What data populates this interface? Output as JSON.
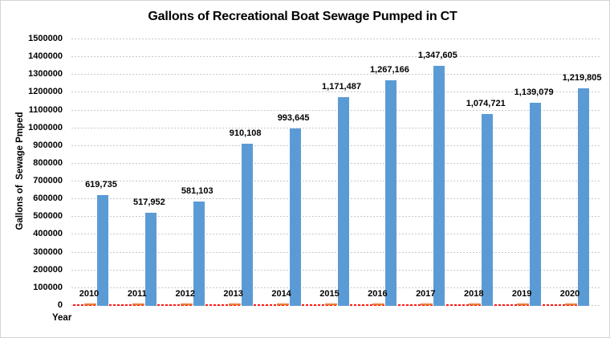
{
  "chart_data": {
    "type": "bar",
    "title": "Gallons of Recreational Boat Sewage Pumped in CT",
    "xlabel": "Year",
    "ylabel": "Gallons of  Sewage Pmped",
    "categories": [
      "2010",
      "2011",
      "2012",
      "2013",
      "2014",
      "2015",
      "2016",
      "2017",
      "2018",
      "2019",
      "2020"
    ],
    "values": [
      619735,
      517952,
      581103,
      910108,
      993645,
      1171487,
      1267166,
      1347605,
      1074721,
      1139079,
      1219805
    ],
    "data_labels": [
      "619,735",
      "517,952",
      "581,103",
      "910,108",
      "993,645",
      "1,171,487",
      "1,267,166",
      "1,347,605",
      "1,074,721",
      "1,139,079",
      "1,219,805"
    ],
    "y_ticks": [
      0,
      100000,
      200000,
      300000,
      400000,
      500000,
      600000,
      700000,
      800000,
      900000,
      1000000,
      1100000,
      1200000,
      1300000,
      1400000,
      1500000
    ],
    "ylim": [
      0,
      1500000
    ],
    "grid": true,
    "legend": "none",
    "bar_color": "#5b9bd5",
    "baseline_marker_color": "#ed7d31",
    "zero_line_color": "#fe1b12",
    "gridline_color": "#c8c8c8",
    "text_color": "#000000"
  }
}
